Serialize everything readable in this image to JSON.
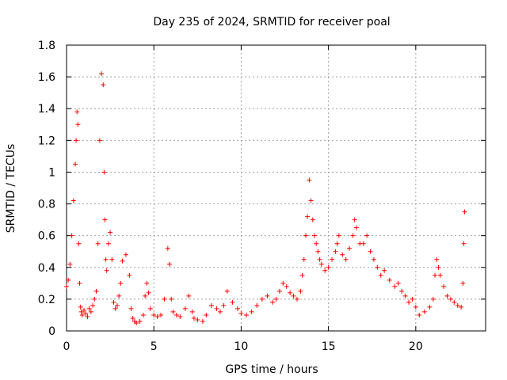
{
  "chart_data": {
    "type": "scatter",
    "title": "Day 235 of 2024, SRMTID for receiver poal",
    "xlabel": "GPS time / hours",
    "ylabel": "SRMTID / TECUs",
    "xlim": [
      0,
      24
    ],
    "ylim": [
      0,
      1.8
    ],
    "xticks": [
      0,
      5,
      10,
      15,
      20
    ],
    "xtick_labels": [
      "0",
      "5",
      "10",
      "15",
      "20"
    ],
    "yticks": [
      0,
      0.2,
      0.4,
      0.6,
      0.8,
      1,
      1.2,
      1.4,
      1.6,
      1.8
    ],
    "ytick_labels": [
      "0",
      "0.2",
      "0.4",
      "0.6",
      "0.8",
      "1",
      "1.2",
      "1.4",
      "1.6",
      "1.8"
    ],
    "grid": true,
    "marker": "plus",
    "color": "#ff0000",
    "series": [
      {
        "name": "SRMTID",
        "x": [
          0.0,
          0.1,
          0.2,
          0.3,
          0.4,
          0.5,
          0.55,
          0.6,
          0.65,
          0.7,
          0.75,
          0.8,
          0.85,
          0.9,
          1.0,
          1.1,
          1.2,
          1.3,
          1.4,
          1.5,
          1.6,
          1.7,
          1.8,
          1.9,
          2.0,
          2.1,
          2.15,
          2.2,
          2.25,
          2.3,
          2.4,
          2.5,
          2.6,
          2.7,
          2.8,
          2.9,
          3.0,
          3.1,
          3.2,
          3.4,
          3.6,
          3.7,
          3.8,
          3.9,
          4.0,
          4.2,
          4.4,
          4.5,
          4.6,
          4.7,
          4.8,
          5.0,
          5.2,
          5.4,
          5.6,
          5.8,
          5.9,
          6.0,
          6.1,
          6.3,
          6.5,
          6.8,
          7.0,
          7.2,
          7.3,
          7.5,
          7.8,
          8.0,
          8.3,
          8.6,
          8.8,
          9.0,
          9.2,
          9.5,
          9.8,
          10.0,
          10.3,
          10.6,
          10.9,
          11.2,
          11.5,
          11.8,
          12.0,
          12.2,
          12.4,
          12.6,
          12.8,
          13.0,
          13.2,
          13.4,
          13.5,
          13.6,
          13.7,
          13.8,
          13.9,
          14.0,
          14.1,
          14.2,
          14.3,
          14.4,
          14.5,
          14.6,
          14.8,
          15.0,
          15.2,
          15.4,
          15.5,
          15.6,
          15.8,
          16.0,
          16.2,
          16.4,
          16.5,
          16.6,
          16.8,
          17.0,
          17.2,
          17.4,
          17.6,
          17.8,
          18.0,
          18.2,
          18.5,
          18.8,
          19.0,
          19.2,
          19.4,
          19.6,
          19.8,
          20.0,
          20.2,
          20.5,
          20.8,
          21.0,
          21.1,
          21.2,
          21.3,
          21.4,
          21.6,
          21.8,
          22.0,
          22.2,
          22.4,
          22.6,
          22.7,
          22.75,
          22.8
        ],
        "y": [
          0.28,
          0.32,
          0.42,
          0.6,
          0.82,
          1.05,
          1.2,
          1.38,
          1.3,
          0.55,
          0.3,
          0.15,
          0.12,
          0.1,
          0.13,
          0.11,
          0.09,
          0.14,
          0.12,
          0.16,
          0.2,
          0.25,
          0.55,
          1.2,
          1.62,
          1.55,
          1.0,
          0.7,
          0.45,
          0.38,
          0.55,
          0.62,
          0.45,
          0.18,
          0.14,
          0.16,
          0.22,
          0.3,
          0.44,
          0.48,
          0.35,
          0.14,
          0.08,
          0.06,
          0.05,
          0.06,
          0.1,
          0.22,
          0.3,
          0.24,
          0.14,
          0.1,
          0.09,
          0.1,
          0.2,
          0.52,
          0.42,
          0.2,
          0.12,
          0.1,
          0.09,
          0.14,
          0.22,
          0.12,
          0.08,
          0.07,
          0.06,
          0.1,
          0.16,
          0.14,
          0.12,
          0.16,
          0.25,
          0.18,
          0.14,
          0.11,
          0.1,
          0.12,
          0.16,
          0.2,
          0.22,
          0.18,
          0.2,
          0.25,
          0.3,
          0.28,
          0.24,
          0.22,
          0.2,
          0.25,
          0.35,
          0.45,
          0.6,
          0.72,
          0.95,
          0.82,
          0.7,
          0.6,
          0.55,
          0.5,
          0.45,
          0.42,
          0.38,
          0.4,
          0.45,
          0.5,
          0.55,
          0.6,
          0.48,
          0.45,
          0.52,
          0.6,
          0.7,
          0.65,
          0.55,
          0.55,
          0.6,
          0.5,
          0.45,
          0.4,
          0.35,
          0.38,
          0.32,
          0.28,
          0.3,
          0.25,
          0.22,
          0.18,
          0.2,
          0.15,
          0.1,
          0.12,
          0.15,
          0.2,
          0.35,
          0.45,
          0.4,
          0.35,
          0.28,
          0.22,
          0.2,
          0.18,
          0.16,
          0.15,
          0.3,
          0.55,
          0.75
        ]
      }
    ]
  }
}
